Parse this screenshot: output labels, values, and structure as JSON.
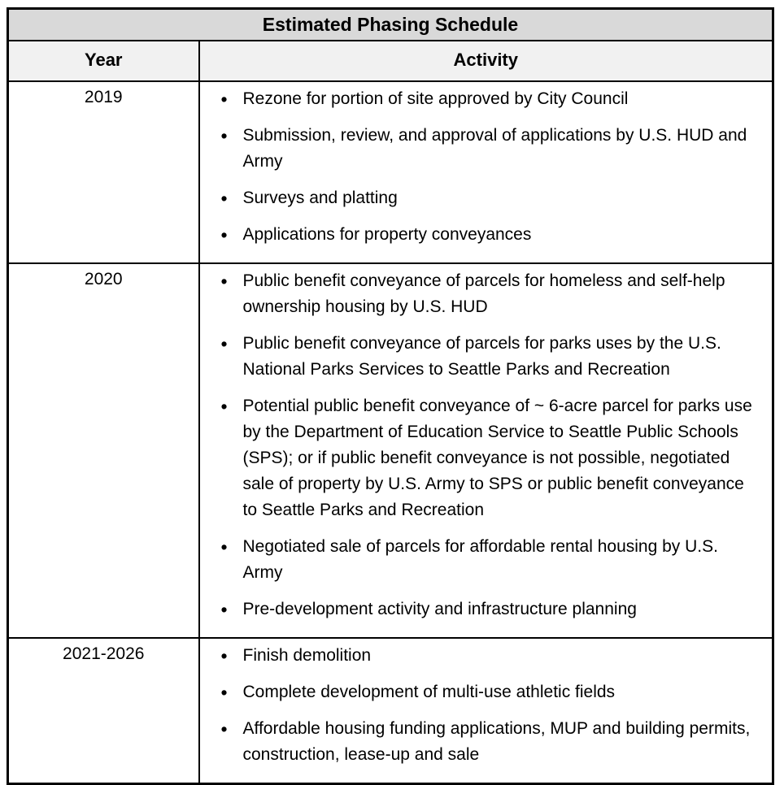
{
  "table": {
    "title": "Estimated Phasing Schedule",
    "columns": [
      "Year",
      "Activity"
    ],
    "colors": {
      "title_bg": "#d9d9d9",
      "header_bg": "#f1f1f1",
      "border": "#000000",
      "text": "#000000"
    },
    "rows": [
      {
        "year": "2019",
        "activities": [
          "Rezone for portion of site approved by City Council",
          "Submission, review, and approval of applications by U.S. HUD and Army",
          "Surveys and platting",
          "Applications for property conveyances"
        ]
      },
      {
        "year": "2020",
        "activities": [
          "Public benefit conveyance of parcels for homeless and self-help ownership housing by U.S. HUD",
          "Public benefit conveyance of parcels for parks uses by the U.S. National Parks Services to Seattle Parks and Recreation",
          "Potential public benefit conveyance of ~ 6-acre parcel for parks use by the Department of Education Service to Seattle Public Schools (SPS); or if public benefit conveyance is not possible, negotiated sale of property by U.S. Army to SPS or public benefit conveyance to Seattle Parks and Recreation",
          "Negotiated sale of parcels for affordable rental housing by U.S. Army",
          "Pre-development activity and infrastructure planning"
        ]
      },
      {
        "year": "2021-2026",
        "activities": [
          "Finish demolition",
          "Complete development of multi-use athletic fields",
          "Affordable housing funding applications, MUP and building permits, construction, lease-up and sale"
        ]
      }
    ]
  }
}
